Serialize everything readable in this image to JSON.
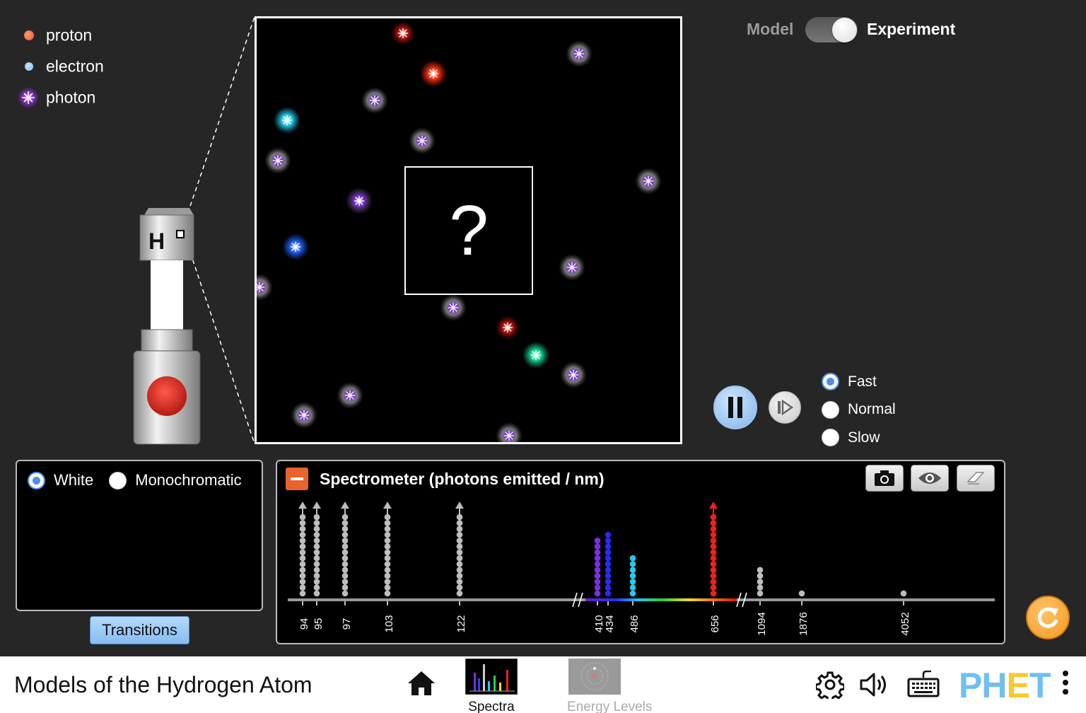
{
  "legend": [
    {
      "label": "proton",
      "kind": "proton"
    },
    {
      "label": "electron",
      "kind": "electron"
    },
    {
      "label": "photon",
      "kind": "photon"
    }
  ],
  "box": {
    "mystery_label": "?"
  },
  "gun": {
    "element_label": "H"
  },
  "mode_toggle": {
    "left_label": "Model",
    "right_label": "Experiment",
    "selected": "Experiment"
  },
  "speed": {
    "options": [
      "Fast",
      "Normal",
      "Slow"
    ],
    "selected": "Fast"
  },
  "light": {
    "options": [
      "White",
      "Monochromatic"
    ],
    "selected": "White",
    "transitions_label": "Transitions"
  },
  "spectrometer": {
    "title": "Spectrometer (photons emitted / nm)",
    "tools": [
      "camera-icon",
      "eye-icon",
      "eraser-icon"
    ],
    "ticks": [
      "94",
      "95",
      "97",
      "103",
      "122",
      "410",
      "434",
      "486",
      "656",
      "1094",
      "1876",
      "4052"
    ]
  },
  "nav": {
    "sim_title": "Models of the Hydrogen Atom",
    "screens": [
      "Spectra",
      "Energy Levels"
    ],
    "selected_screen": "Spectra",
    "logo_left": "PH",
    "logo_e": "E",
    "logo_right": "T"
  },
  "colors": {
    "accent_orange": "#e8632e",
    "play_blue": "#7fb5ea",
    "reset_orange": "#f29a1d",
    "phet_blue": "#6fbff0"
  }
}
